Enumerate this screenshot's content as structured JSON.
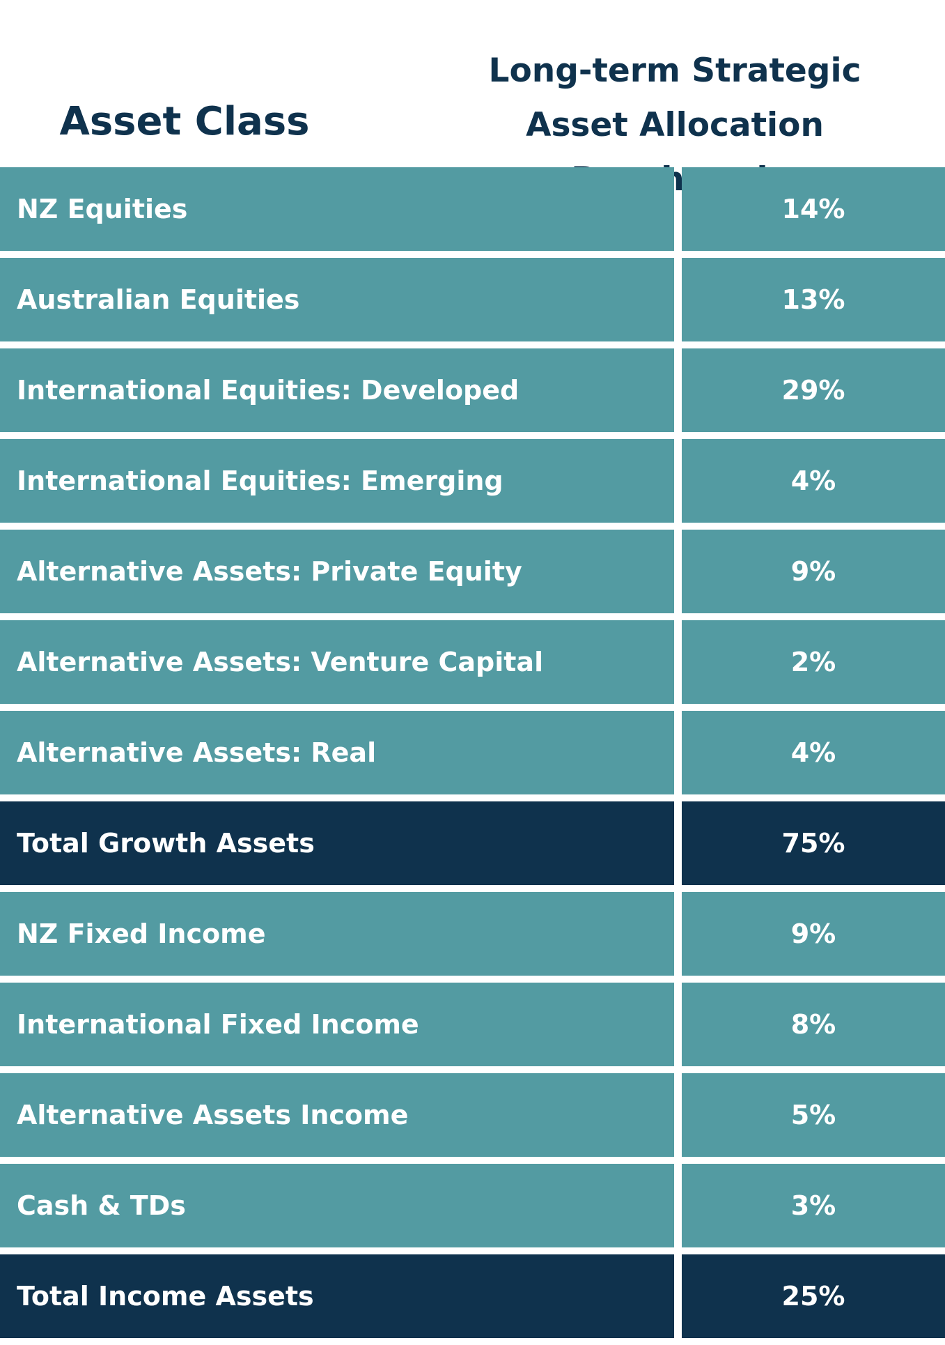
{
  "header": {
    "asset_class": "Asset Class",
    "benchmark_line1": "Long-term Strategic",
    "benchmark_line2": "Asset Allocation Benchmark"
  },
  "rows": [
    {
      "name": "NZ Equities",
      "value": "14%",
      "total": false
    },
    {
      "name": "Australian Equities",
      "value": "13%",
      "total": false
    },
    {
      "name": "International Equities: Developed",
      "value": "29%",
      "total": false
    },
    {
      "name": "International Equities: Emerging",
      "value": "4%",
      "total": false
    },
    {
      "name": "Alternative Assets: Private Equity",
      "value": "9%",
      "total": false
    },
    {
      "name": "Alternative Assets: Venture Capital",
      "value": "2%",
      "total": false
    },
    {
      "name": "Alternative Assets: Real",
      "value": "4%",
      "total": false
    },
    {
      "name": "Total Growth Assets",
      "value": "75%",
      "total": true
    },
    {
      "name": "NZ Fixed Income",
      "value": "9%",
      "total": false
    },
    {
      "name": "International Fixed Income",
      "value": "8%",
      "total": false
    },
    {
      "name": "Alternative Assets Income",
      "value": "5%",
      "total": false
    },
    {
      "name": "Cash & TDs",
      "value": "3%",
      "total": false
    },
    {
      "name": "Total Income Assets",
      "value": "25%",
      "total": true
    }
  ],
  "colors": {
    "row": "#539ba2",
    "total_row": "#0f324d",
    "header_text": "#0f324d"
  }
}
